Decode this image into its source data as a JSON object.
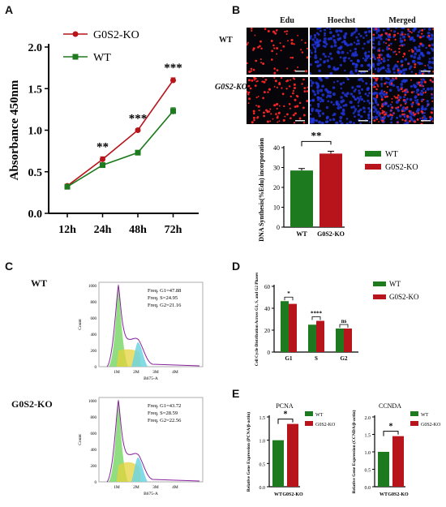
{
  "panels": {
    "a": "A",
    "b": "B",
    "c": "C",
    "d": "D",
    "e": "E"
  },
  "colors": {
    "ko": "#b7141b",
    "wt": "#1e7a1e",
    "hoechst": "#1530d8",
    "edu": "#e21d1d"
  },
  "images_b": {
    "headers": [
      "Edu",
      "Hoechst",
      "Merged"
    ],
    "row_labels": [
      "WT",
      "G0S2-KO"
    ]
  },
  "flow_c": {
    "wt_label": "WT",
    "ko_label": "G0S2-KO",
    "wt_freq": [
      "Freq. G1=47.88",
      "Freq. S=24.95",
      "Freq. G2=21.16"
    ],
    "ko_freq": [
      "Freq. G1=43.72",
      "Freq. S=28.59",
      "Freq. G2=22.56"
    ],
    "count_label": "Count",
    "x_label": "B675-A",
    "x_ticks": [
      "1M",
      "2M",
      "3M",
      "4M"
    ],
    "y_ticks": [
      "1000",
      "800",
      "600",
      "400",
      "200",
      "0"
    ]
  },
  "chart_data": [
    {
      "id": "A",
      "type": "line",
      "categories": [
        "12h",
        "24h",
        "48h",
        "72h"
      ],
      "series": [
        {
          "name": "G0S2-KO",
          "values": [
            0.33,
            0.65,
            1.0,
            1.6
          ],
          "errors": [
            0.02,
            0.03,
            0.02,
            0.03
          ]
        },
        {
          "name": "WT",
          "values": [
            0.32,
            0.58,
            0.73,
            1.23
          ],
          "errors": [
            0.02,
            0.02,
            0.02,
            0.04
          ]
        }
      ],
      "annotations": [
        {
          "category": "24h",
          "text": "**"
        },
        {
          "category": "48h",
          "text": "***"
        },
        {
          "category": "72h",
          "text": "***"
        }
      ],
      "ylabel": "Absorbance 450nm",
      "ylim": [
        0.0,
        2.0
      ],
      "yticks": [
        "0.0",
        "0.5",
        "1.0",
        "1.5",
        "2.0"
      ],
      "legend": "top-left"
    },
    {
      "id": "B",
      "type": "bar",
      "categories": [
        "WT",
        "G0S2-KO"
      ],
      "values": [
        28.5,
        37
      ],
      "errors": [
        1.0,
        1.2
      ],
      "ylabel": "DNA Synthesis(%Edu) incorporation",
      "ylim": [
        0,
        40
      ],
      "yticks": [
        "0",
        "10",
        "20",
        "30",
        "40"
      ],
      "significance": "**",
      "legend": [
        "WT",
        "G0S2-KO"
      ]
    },
    {
      "id": "D",
      "type": "bar",
      "categories": [
        "G1",
        "S",
        "G2"
      ],
      "series": [
        {
          "name": "WT",
          "values": [
            46.5,
            25,
            21.5
          ]
        },
        {
          "name": "G0S2-KO",
          "values": [
            44,
            28.5,
            21.5
          ]
        }
      ],
      "ylabel": "Cell Cycle Distribution Across G1, S, and G2 Phases",
      "ylim": [
        0,
        60
      ],
      "yticks": [
        "0",
        "20",
        "40",
        "60"
      ],
      "significance": [
        "*",
        "****",
        "ns"
      ],
      "legend": "top-right"
    },
    {
      "id": "E1",
      "type": "bar",
      "title": "PCNA",
      "categories": [
        "WT",
        "G0S2-KO"
      ],
      "values": [
        1.0,
        1.35
      ],
      "ylabel": "Relative Gene Expression (PCNA/β-actin)",
      "ylim": [
        0,
        1.5
      ],
      "yticks": [
        "0.0",
        "0.5",
        "1.0",
        "1.5"
      ],
      "significance": "*",
      "legend": [
        "WT",
        "G0S2-KO"
      ]
    },
    {
      "id": "E2",
      "type": "bar",
      "title": "CCNDA",
      "categories": [
        "WT",
        "G0S2-KO"
      ],
      "values": [
        1.0,
        1.45
      ],
      "ylabel": "Relative Gene Expression (CCNDA/β-actin)",
      "ylim": [
        0,
        2.0
      ],
      "yticks": [
        "0.0",
        "0.5",
        "1.0",
        "1.5",
        "2.0"
      ],
      "significance": "*",
      "legend": [
        "WT",
        "G0S2-KO"
      ]
    }
  ]
}
